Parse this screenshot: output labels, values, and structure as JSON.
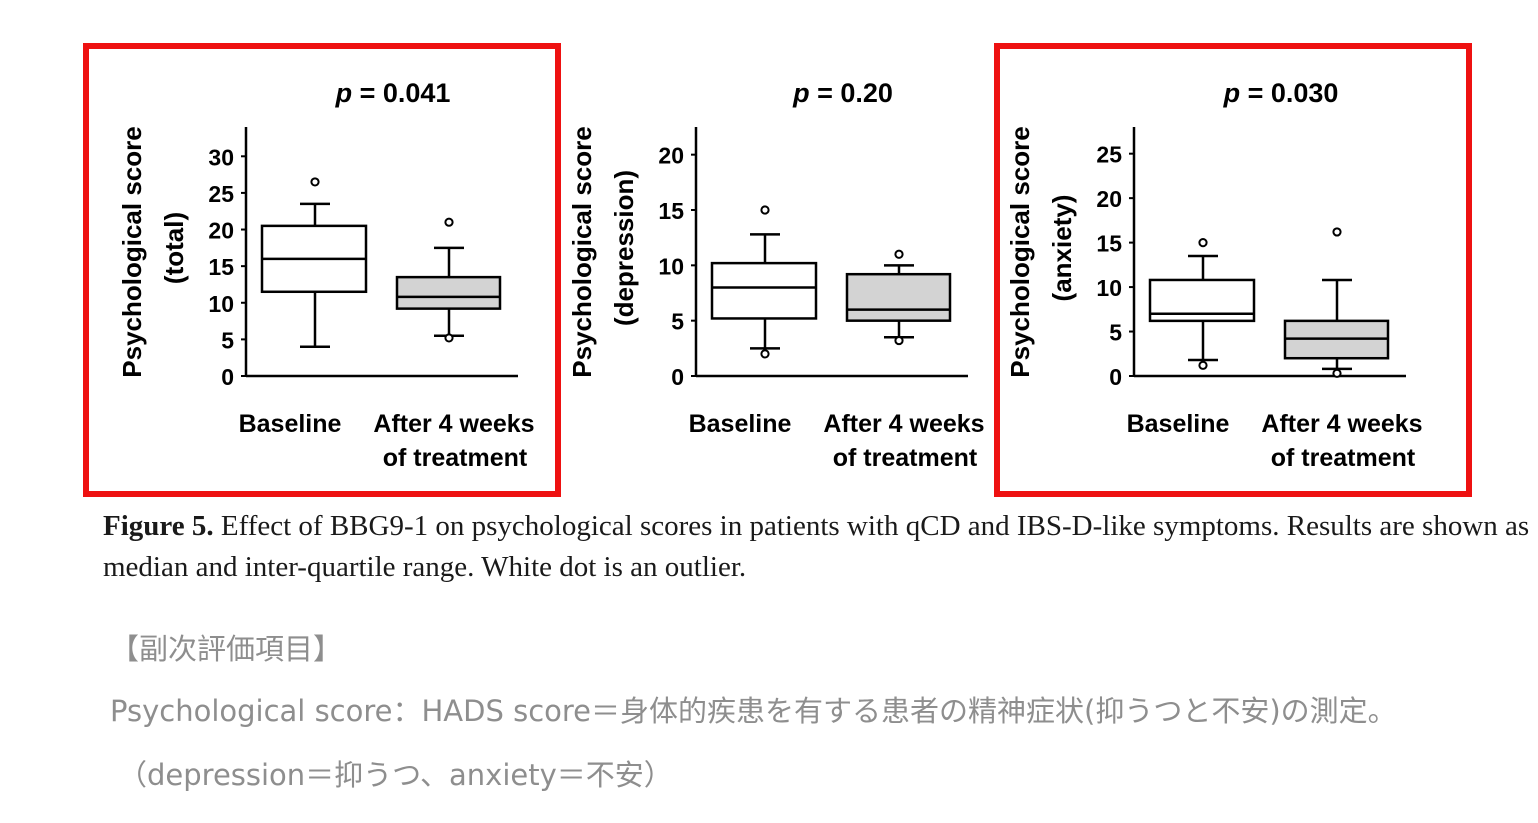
{
  "chart_data": [
    {
      "type": "box",
      "title": "p = 0.041",
      "ylabel": "Psychological score",
      "ylabel2": "(total)",
      "yticks": [
        0,
        5,
        10,
        15,
        20,
        25,
        30
      ],
      "ylim": [
        0,
        34
      ],
      "highlighted": true,
      "categories": [
        {
          "label": "Baseline",
          "label2": "",
          "fill": "#ffffff",
          "whisker_low": 4,
          "q1": 11.5,
          "median": 16,
          "q3": 20.5,
          "whisker_high": 23.5,
          "outliers": [
            26.5
          ]
        },
        {
          "label": "After 4 weeks",
          "label2": "of treatment",
          "fill": "#d3d3d3",
          "whisker_low": 5.5,
          "q1": 9.2,
          "median": 10.8,
          "q3": 13.5,
          "whisker_high": 17.5,
          "outliers": [
            21,
            5.2
          ]
        }
      ]
    },
    {
      "type": "box",
      "title": "p = 0.20",
      "ylabel": "Psychological score",
      "ylabel2": "(depression)",
      "yticks": [
        0,
        5,
        10,
        15,
        20
      ],
      "ylim": [
        0,
        22.5
      ],
      "highlighted": false,
      "categories": [
        {
          "label": "Baseline",
          "label2": "",
          "fill": "#ffffff",
          "whisker_low": 2.5,
          "q1": 5.2,
          "median": 8,
          "q3": 10.2,
          "whisker_high": 12.8,
          "outliers": [
            15,
            2
          ]
        },
        {
          "label": "After 4 weeks",
          "label2": "of treatment",
          "fill": "#d3d3d3",
          "whisker_low": 3.5,
          "q1": 5,
          "median": 6,
          "q3": 9.2,
          "whisker_high": 10,
          "outliers": [
            11,
            3.2
          ]
        }
      ]
    },
    {
      "type": "box",
      "title": "p = 0.030",
      "ylabel": "Psychological score",
      "ylabel2": "(anxiety)",
      "yticks": [
        0,
        5,
        10,
        15,
        20,
        25
      ],
      "ylim": [
        0,
        28
      ],
      "highlighted": true,
      "categories": [
        {
          "label": "Baseline",
          "label2": "",
          "fill": "#ffffff",
          "whisker_low": 1.8,
          "q1": 6.2,
          "median": 7,
          "q3": 10.8,
          "whisker_high": 13.5,
          "outliers": [
            15,
            1.2
          ]
        },
        {
          "label": "After 4 weeks",
          "label2": "of treatment",
          "fill": "#d3d3d3",
          "whisker_low": 0.8,
          "q1": 2,
          "median": 4.2,
          "q3": 6.2,
          "whisker_high": 10.8,
          "outliers": [
            16.2,
            0.3
          ]
        }
      ]
    }
  ],
  "highlight_color": "#ee1111",
  "caption": {
    "label": "Figure 5.",
    "text": " Effect of BBG9-1 on psychological scores in patients with qCD and IBS-D-like symptoms. Results are shown as median and inter-quartile range. White dot is an outlier."
  },
  "notes": {
    "heading": "【副次評価項目】",
    "line1": "Psychological score：HADS score＝身体的疾患を有する患者の精神症状(抑うつと不安)の測定。",
    "line2": "（depression＝抑うつ、anxiety＝不安）"
  }
}
